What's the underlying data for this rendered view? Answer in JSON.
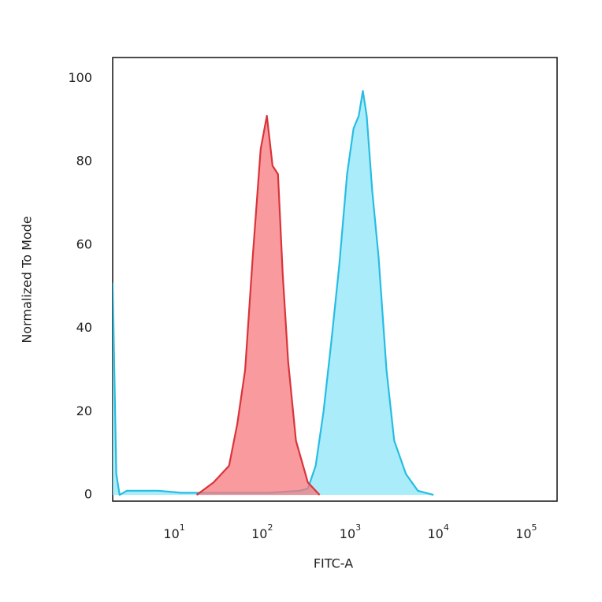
{
  "chart_data": {
    "type": "histogram-overlay",
    "xlabel": "FITC-A",
    "ylabel": "Normalized To Mode",
    "log_x": true,
    "xlim": [
      2,
      224000
    ],
    "ylim": [
      -1.5,
      105
    ],
    "xticks": [
      {
        "value": 10,
        "label": "10^1"
      },
      {
        "value": 100,
        "label": "10^2"
      },
      {
        "value": 1000,
        "label": "10^3"
      },
      {
        "value": 10000,
        "label": "10^4"
      },
      {
        "value": 100000,
        "label": "10^5"
      }
    ],
    "yticks": [
      0,
      20,
      40,
      60,
      80,
      100
    ],
    "grid": false,
    "series": [
      {
        "color": "#27bde3",
        "fill": "#8ee6f8",
        "x": [
          2,
          2.2,
          2.4,
          2.9,
          6.6,
          12,
          23,
          52,
          118,
          268,
          330,
          405,
          497,
          611,
          750,
          921,
          1090,
          1250,
          1390,
          1540,
          1780,
          2100,
          2580,
          3160,
          4300,
          5870,
          8830
        ],
        "values": [
          51,
          5,
          0,
          1,
          1,
          0.5,
          0.5,
          0.5,
          0.5,
          1,
          1.5,
          7,
          20,
          37,
          55,
          77,
          88,
          91,
          97,
          91,
          73,
          57,
          30,
          13,
          5,
          1,
          0
        ]
      },
      {
        "color": "#d9343a",
        "fill": "#f7797d",
        "x": [
          18,
          28,
          42,
          52,
          64,
          78,
          96,
          113,
          131,
          151,
          171,
          197,
          242,
          330,
          449
        ],
        "values": [
          0,
          3,
          7,
          17,
          30,
          57,
          83,
          91,
          79,
          77,
          53,
          32,
          13,
          3,
          0
        ]
      }
    ]
  }
}
